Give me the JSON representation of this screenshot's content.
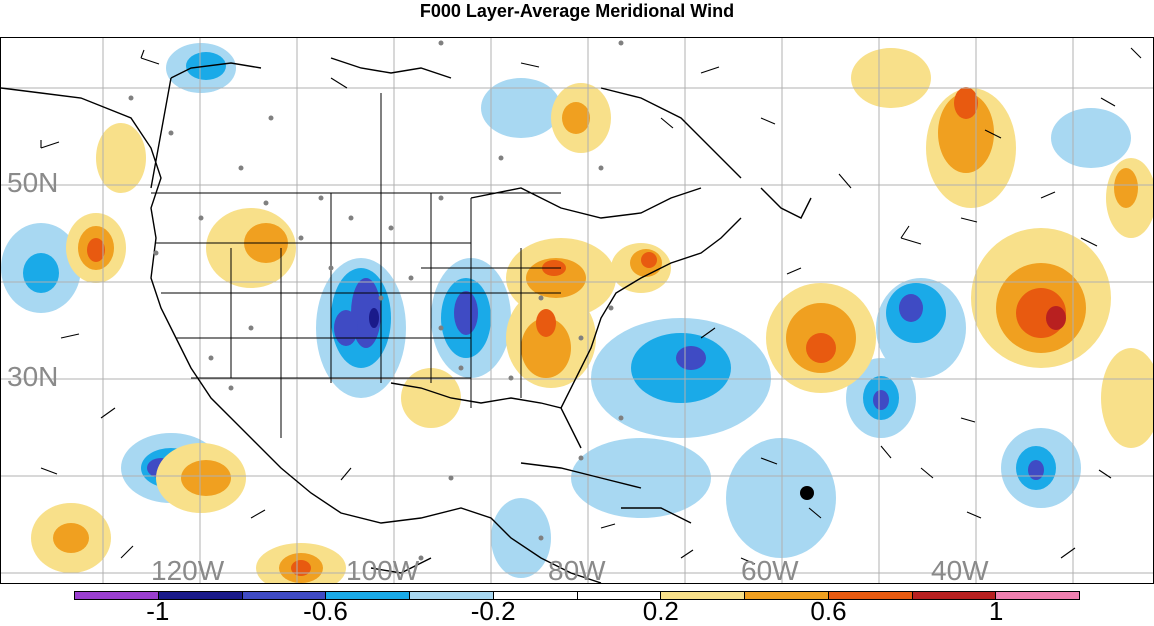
{
  "title": "F000 Layer-Average Meridional Wind",
  "map": {
    "lat_labels": [
      "50N",
      "30N"
    ],
    "lon_labels": [
      "120W",
      "100W",
      "80W",
      "60W",
      "40W"
    ],
    "grid_color": "#b0b0b0",
    "marker_icon": "filled-circle-icon"
  },
  "colorbar": {
    "colors": [
      "#9b3fd0",
      "#1a1a8a",
      "#3f4bc4",
      "#1aaae8",
      "#a8d8f2",
      "#ffffff",
      "#ffffff",
      "#f8e08a",
      "#f0a020",
      "#e85a10",
      "#b82020",
      "#f080b0"
    ],
    "labels": [
      "-1",
      "-0.6",
      "-0.2",
      "0.2",
      "0.6",
      "1"
    ]
  }
}
